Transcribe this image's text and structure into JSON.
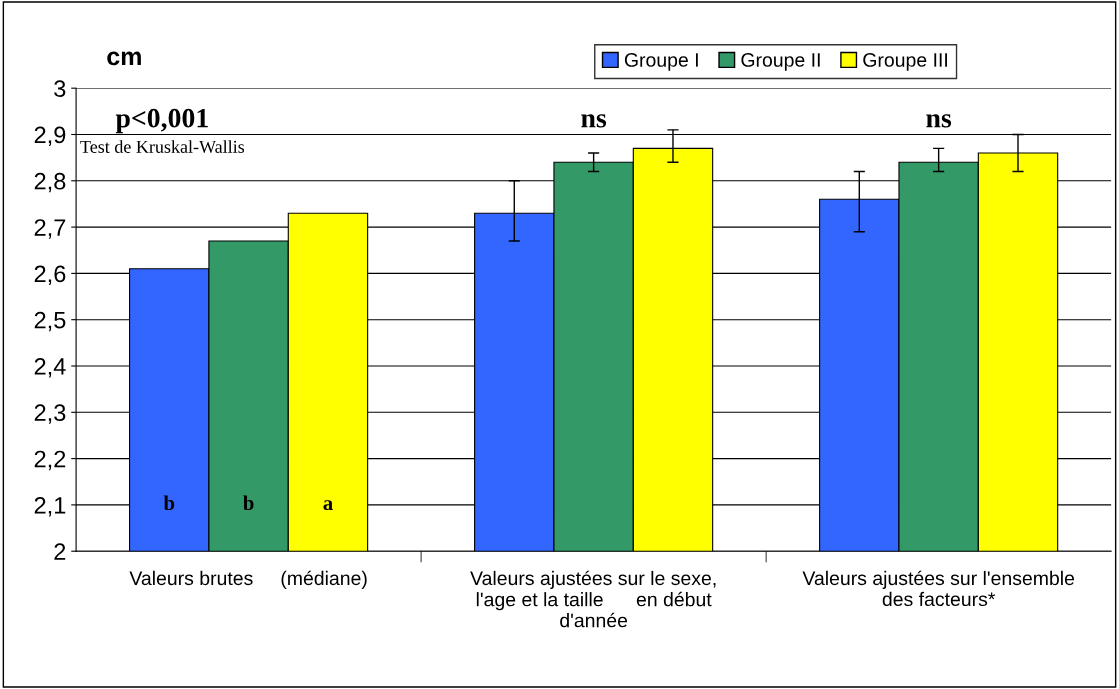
{
  "chart_data": {
    "type": "bar",
    "ylabel": "cm",
    "categories": [
      "Valeurs brutes     (médiane)",
      "Valeurs ajustées sur le sexe,\nl'age et la taille      en début\nd'année",
      "Valeurs ajustées sur l'ensemble\ndes facteurs*"
    ],
    "series": [
      {
        "name": "Groupe I",
        "color": "#3366ff",
        "values": [
          2.61,
          2.73,
          2.76
        ],
        "errors": [
          null,
          [
            2.67,
            2.8
          ],
          [
            2.69,
            2.82
          ]
        ]
      },
      {
        "name": "Groupe II",
        "color": "#339966",
        "values": [
          2.67,
          2.84,
          2.84
        ],
        "errors": [
          null,
          [
            2.82,
            2.86
          ],
          [
            2.82,
            2.87
          ]
        ]
      },
      {
        "name": "Groupe III",
        "color": "#ffff00",
        "values": [
          2.73,
          2.87,
          2.86
        ],
        "errors": [
          null,
          [
            2.84,
            2.91
          ],
          [
            2.82,
            2.9
          ]
        ]
      }
    ],
    "ylim": [
      2,
      3
    ],
    "yticks": [
      2,
      {
        "value": 2.1,
        "label": "2,1"
      },
      {
        "value": 2.2,
        "label": "2,2"
      },
      {
        "value": 2.3,
        "label": "2,3"
      },
      {
        "value": 2.4,
        "label": "2,4"
      },
      {
        "value": 2.5,
        "label": "2,5"
      },
      {
        "value": 2.6,
        "label": "2,6"
      },
      {
        "value": 2.7,
        "label": "2,7"
      },
      {
        "value": 2.8,
        "label": "2,8"
      },
      {
        "value": 2.9,
        "label": "2,9"
      },
      3
    ],
    "grid": "y",
    "legend": "top right",
    "annotations": [
      "p<0,001",
      "Test de Kruskal-Wallis",
      "ns",
      "ns",
      "b",
      "b",
      "a"
    ]
  }
}
